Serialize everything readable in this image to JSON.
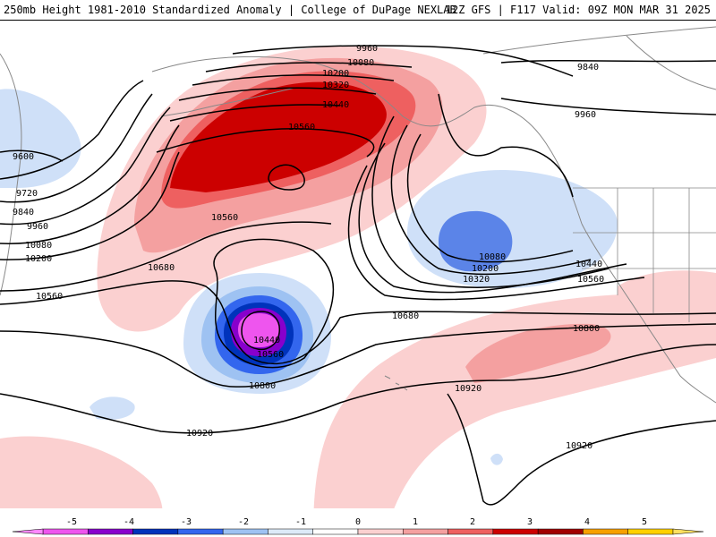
{
  "header": {
    "left_title": "250mb Height 1981-2010 Standardized Anomaly | College of DuPage NEXLAB",
    "right_title": "12Z GFS | F117 Valid: 09Z MON MAR 31 2025"
  },
  "contours": {
    "labels": [
      "9960",
      "10080",
      "10200",
      "10320",
      "10440",
      "10560",
      "9840",
      "9960",
      "9600",
      "9720",
      "9840",
      "9960",
      "10080",
      "10200",
      "10560",
      "10560",
      "10680",
      "10440",
      "10560",
      "10800",
      "10680",
      "10080",
      "10200",
      "10320",
      "10440",
      "10560",
      "10800",
      "10920",
      "10920",
      "10920"
    ]
  },
  "colorbar": {
    "ticks": [
      "-5",
      "-4",
      "-3",
      "-2",
      "-1",
      "0",
      "1",
      "2",
      "3",
      "4",
      "5"
    ],
    "colors": [
      "#ee55ee",
      "#8800cc",
      "#0033bb",
      "#3366ee",
      "#9ec2f2",
      "#ddeaf8",
      "#ffffff",
      "#fbd0d0",
      "#f4a0a0",
      "#ee6060",
      "#cc0000",
      "#a00000",
      "#f6a000",
      "#ffd000"
    ]
  },
  "palette": {
    "land_line": "#888888",
    "contour": "#000000"
  }
}
